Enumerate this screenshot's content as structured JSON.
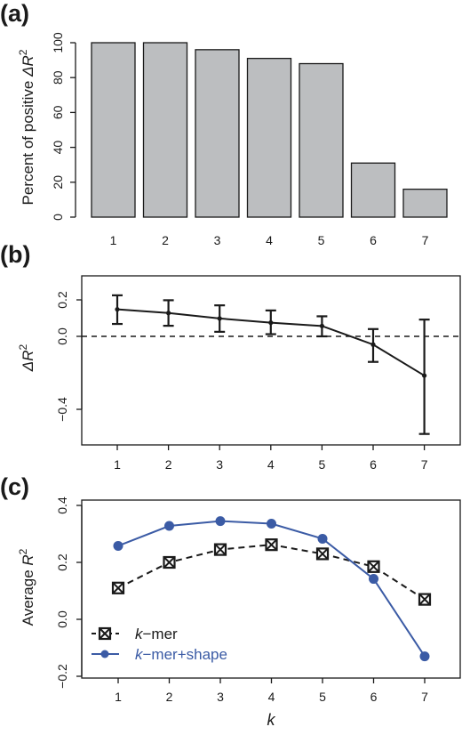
{
  "chart_data": [
    {
      "panel": "(a)",
      "type": "bar",
      "categories": [
        "1",
        "2",
        "3",
        "4",
        "5",
        "6",
        "7"
      ],
      "values": [
        100,
        100,
        96,
        91,
        88,
        31,
        16
      ],
      "ylabel_prefix": "Percent of positive ",
      "ylabel_symbol": "ΔR",
      "ylabel_sup": "2",
      "yticks": [
        "0",
        "20",
        "40",
        "60",
        "80",
        "100"
      ],
      "ylim": [
        0,
        100
      ],
      "bar_color": "#bcbec0",
      "grid": false
    },
    {
      "panel": "(b)",
      "type": "scatter",
      "x": [
        "1",
        "2",
        "3",
        "4",
        "5",
        "6",
        "7"
      ],
      "y": [
        0.148,
        0.128,
        0.098,
        0.075,
        0.057,
        -0.045,
        -0.215
      ],
      "error_low": [
        0.068,
        0.058,
        0.025,
        0.012,
        0.0,
        -0.14,
        -0.535
      ],
      "error_high": [
        0.225,
        0.198,
        0.17,
        0.142,
        0.11,
        0.04,
        0.092
      ],
      "reference_line": 0.0,
      "ylabel_symbol": "ΔR",
      "ylabel_sup": "2",
      "yticks": [
        "0.2",
        "0.0",
        "−0.4"
      ],
      "ytick_values": [
        0.2,
        0.0,
        -0.4
      ],
      "ylim": [
        -0.54,
        0.26
      ],
      "grid": false
    },
    {
      "panel": "(c)",
      "type": "line",
      "x": [
        "1",
        "2",
        "3",
        "4",
        "5",
        "6",
        "7"
      ],
      "series": [
        {
          "name_italic": "k",
          "name_rest": "−mer",
          "values": [
            0.11,
            0.2,
            0.245,
            0.262,
            0.23,
            0.185,
            0.07
          ],
          "color": "#1a1a1a",
          "dashed": true,
          "marker": "crossed-square"
        },
        {
          "name_italic": "k",
          "name_rest": "−mer+shape",
          "values": [
            0.258,
            0.328,
            0.345,
            0.336,
            0.283,
            0.142,
            -0.13
          ],
          "color": "#3b5ba5",
          "dashed": false,
          "marker": "filled-circle"
        }
      ],
      "xlabel": "k",
      "ylabel_prefix": "Average ",
      "ylabel_symbol": "R",
      "ylabel_sup": "2",
      "yticks": [
        "−0.2",
        "0.0",
        "0.2",
        "0.4"
      ],
      "ytick_values": [
        -0.2,
        0.0,
        0.2,
        0.4
      ],
      "ylim": [
        -0.2,
        0.4
      ],
      "legend_position": "bottom-left",
      "grid": false
    }
  ]
}
